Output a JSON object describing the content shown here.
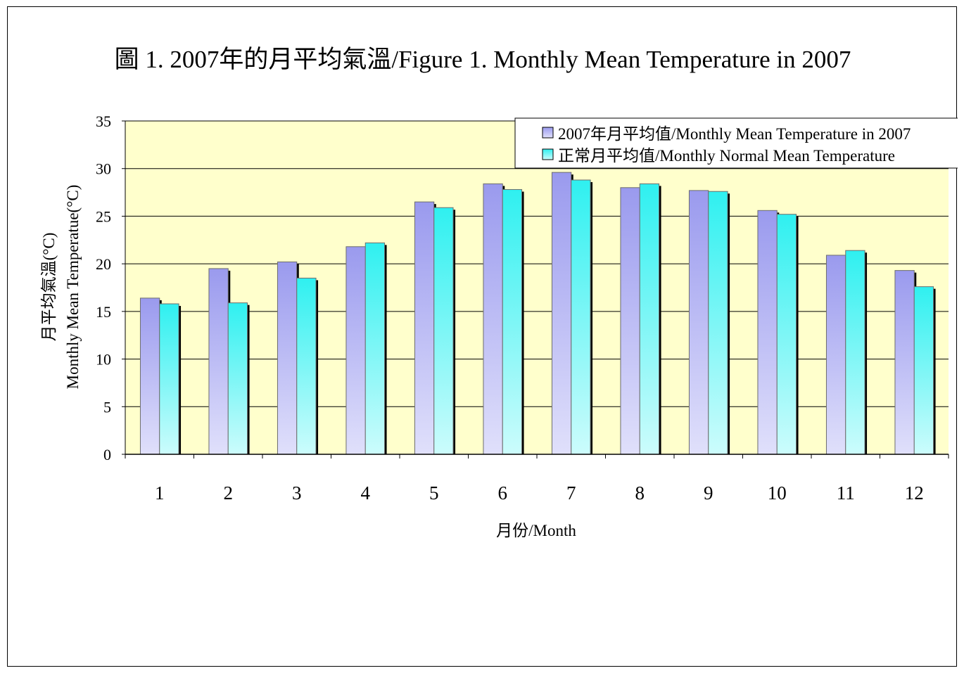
{
  "chart_data": {
    "type": "bar",
    "title": "圖 1. 2007年的月平均氣溫/Figure 1. Monthly Mean Temperature in 2007",
    "xlabel": "月份/Month",
    "ylabel_line1": "月平均氣溫(°C)",
    "ylabel_line2": "Monthly Mean Temperatue(°C)",
    "categories": [
      "1",
      "2",
      "3",
      "4",
      "5",
      "6",
      "7",
      "8",
      "9",
      "10",
      "11",
      "12"
    ],
    "ylim": [
      0,
      35
    ],
    "yticks": [
      0,
      5,
      10,
      15,
      20,
      25,
      30,
      35
    ],
    "grid": true,
    "legend_position": "top-right",
    "series": [
      {
        "name": "2007年月平均值/Monthly Mean Temperature in 2007",
        "values": [
          16.4,
          19.5,
          20.2,
          21.8,
          26.5,
          28.4,
          29.6,
          28.0,
          27.7,
          25.6,
          20.9,
          19.3
        ],
        "color": "#9d9df0"
      },
      {
        "name": "正常月平均值/Monthly Normal Mean Temperature",
        "values": [
          15.8,
          15.9,
          18.5,
          22.2,
          25.9,
          27.8,
          28.8,
          28.4,
          27.6,
          25.2,
          21.4,
          17.6
        ],
        "color": "#33f2f2"
      }
    ],
    "colors": {
      "plot_background": "#ffffcc",
      "gridline": "#000000"
    }
  }
}
